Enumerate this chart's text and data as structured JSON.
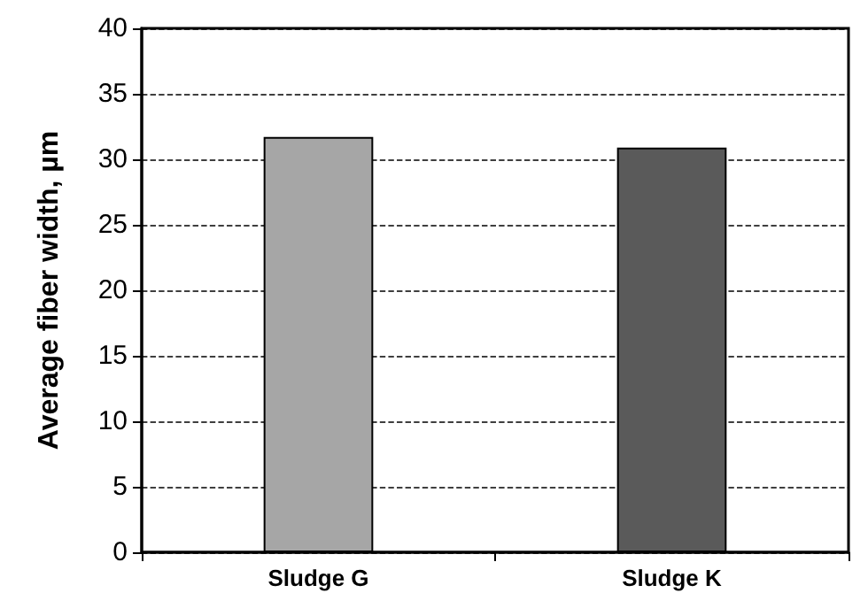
{
  "chart_data": {
    "type": "bar",
    "ylabel": "Average fiber width, µm",
    "categories": [
      "Sludge G",
      "Sludge K"
    ],
    "values": [
      31.7,
      30.9
    ],
    "colors": [
      "#a6a6a6",
      "#5a5a5a"
    ],
    "ylim": [
      0,
      40
    ],
    "yticks": [
      0,
      5,
      10,
      15,
      20,
      25,
      30,
      35,
      40
    ],
    "grid": "y"
  }
}
